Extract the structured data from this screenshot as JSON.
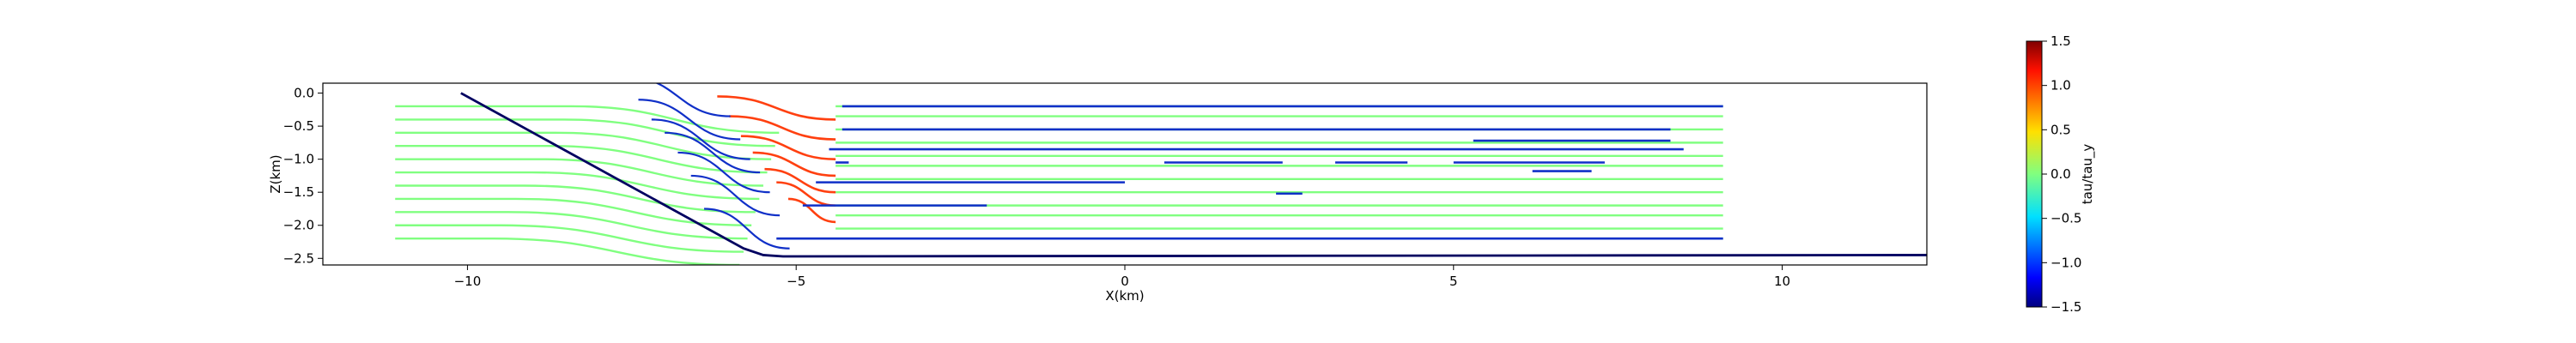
{
  "chart_data": {
    "type": "line",
    "title": "",
    "xlabel": "X(km)",
    "ylabel": "Z(km)",
    "xlim": [
      -12.2,
      12.2
    ],
    "ylim": [
      -2.6,
      0.15
    ],
    "x_ticks": [
      -10,
      -5,
      0,
      5,
      10
    ],
    "x_tick_labels": [
      "−10",
      "−5",
      "0",
      "5",
      "10"
    ],
    "y_ticks": [
      0.0,
      -0.5,
      -1.0,
      -1.5,
      -2.0,
      -2.5
    ],
    "y_tick_labels": [
      "0.0",
      "−0.5",
      "−1.0",
      "−1.5",
      "−2.0",
      "−2.5"
    ],
    "grid": false,
    "fault_trace": {
      "color": "#000060",
      "x": [
        -10.1,
        -5.8,
        -5.5,
        -5.2,
        12.2
      ],
      "y": [
        0.0,
        -2.35,
        -2.45,
        -2.47,
        -2.45
      ]
    },
    "streamlines": {
      "left_tail": {
        "color": "#80ff80",
        "x_start": -11.1,
        "bend_start_x": -8.3,
        "depths": [
          -0.2,
          -0.4,
          -0.6,
          -0.8,
          -1.0,
          -1.2,
          -1.4,
          -1.6,
          -1.8,
          -2.0,
          -2.2
        ]
      },
      "right_tail": {
        "x_end": 9.1,
        "depths": [
          -0.2,
          -0.35,
          -0.55,
          -0.75,
          -0.95,
          -1.1,
          -1.3,
          -1.5,
          -1.7,
          -1.85,
          -2.05,
          -2.2
        ]
      },
      "blue_line_depths": [
        -0.2,
        -0.55,
        -0.85,
        -1.05,
        -1.35,
        -1.7,
        -2.2
      ],
      "red_arc_depths": [
        -0.4,
        -0.7,
        -1.0,
        -1.25,
        -1.5,
        -1.7,
        -1.95
      ]
    },
    "blue_segments": [
      {
        "x": [
          -4.3,
          9.1
        ],
        "y": [
          -0.2,
          -0.2
        ]
      },
      {
        "x": [
          -4.3,
          8.3
        ],
        "y": [
          -0.55,
          -0.55
        ]
      },
      {
        "x": [
          5.3,
          8.3
        ],
        "y": [
          -0.72,
          -0.72
        ]
      },
      {
        "x": [
          -4.5,
          8.5
        ],
        "y": [
          -0.85,
          -0.85
        ]
      },
      {
        "x": [
          -4.4,
          -4.2
        ],
        "y": [
          -1.05,
          -1.05
        ]
      },
      {
        "x": [
          0.6,
          2.4
        ],
        "y": [
          -1.05,
          -1.05
        ]
      },
      {
        "x": [
          3.2,
          4.3
        ],
        "y": [
          -1.05,
          -1.05
        ]
      },
      {
        "x": [
          5.0,
          7.3
        ],
        "y": [
          -1.05,
          -1.05
        ]
      },
      {
        "x": [
          6.2,
          7.1
        ],
        "y": [
          -1.18,
          -1.18
        ]
      },
      {
        "x": [
          -4.7,
          0.0
        ],
        "y": [
          -1.35,
          -1.35
        ]
      },
      {
        "x": [
          2.3,
          2.7
        ],
        "y": [
          -1.52,
          -1.52
        ]
      },
      {
        "x": [
          -4.9,
          -2.1
        ],
        "y": [
          -1.7,
          -1.7
        ]
      },
      {
        "x": [
          -5.3,
          9.1
        ],
        "y": [
          -2.2,
          -2.2
        ]
      }
    ],
    "colorbar": {
      "label": "tau/tau_y",
      "min": -1.5,
      "max": 1.5,
      "ticks": [
        1.5,
        1.0,
        0.5,
        0.0,
        -0.5,
        -1.0,
        -1.5
      ],
      "tick_labels": [
        "1.5",
        "1.0",
        "0.5",
        "0.0",
        "−0.5",
        "−1.0",
        "−1.5"
      ],
      "colormap": "jet"
    },
    "colors": {
      "low": "#1030c8",
      "neutral": "#80ff80",
      "high": "#ff4010",
      "fault": "#000060"
    }
  }
}
